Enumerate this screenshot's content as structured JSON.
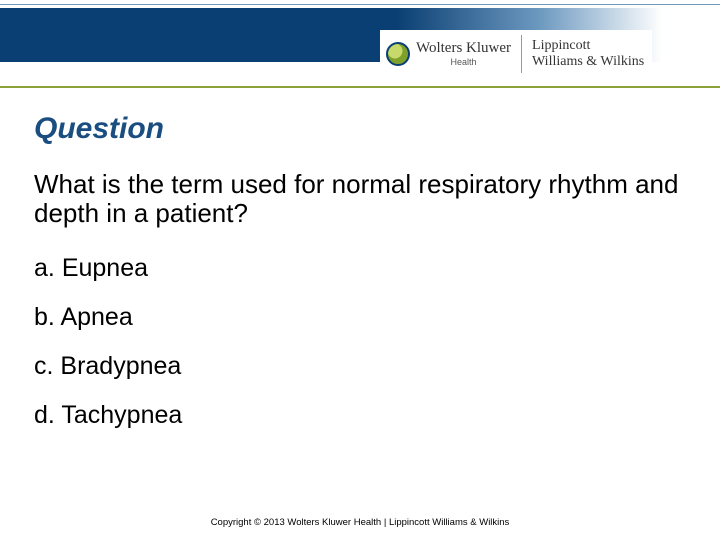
{
  "header": {
    "brand1": "Wolters Kluwer",
    "brand1_sub": "Health",
    "brand2_line1": "Lippincott",
    "brand2_line2": "Williams & Wilkins"
  },
  "colors": {
    "title_color": "#1a4d80",
    "blue_bar_start": "#0a3f73",
    "green_line": "#8aa13a"
  },
  "content": {
    "title": "Question",
    "question": "What is the term used for normal respiratory rhythm and depth in a patient?",
    "options": [
      {
        "letter": "a.",
        "text": "Eupnea"
      },
      {
        "letter": "b.",
        "text": "Apnea"
      },
      {
        "letter": "c.",
        "text": "Bradypnea"
      },
      {
        "letter": "d.",
        "text": "Tachypnea"
      }
    ]
  },
  "footer": {
    "copyright": "Copyright © 2013 Wolters Kluwer Health | Lippincott Williams & Wilkins"
  }
}
